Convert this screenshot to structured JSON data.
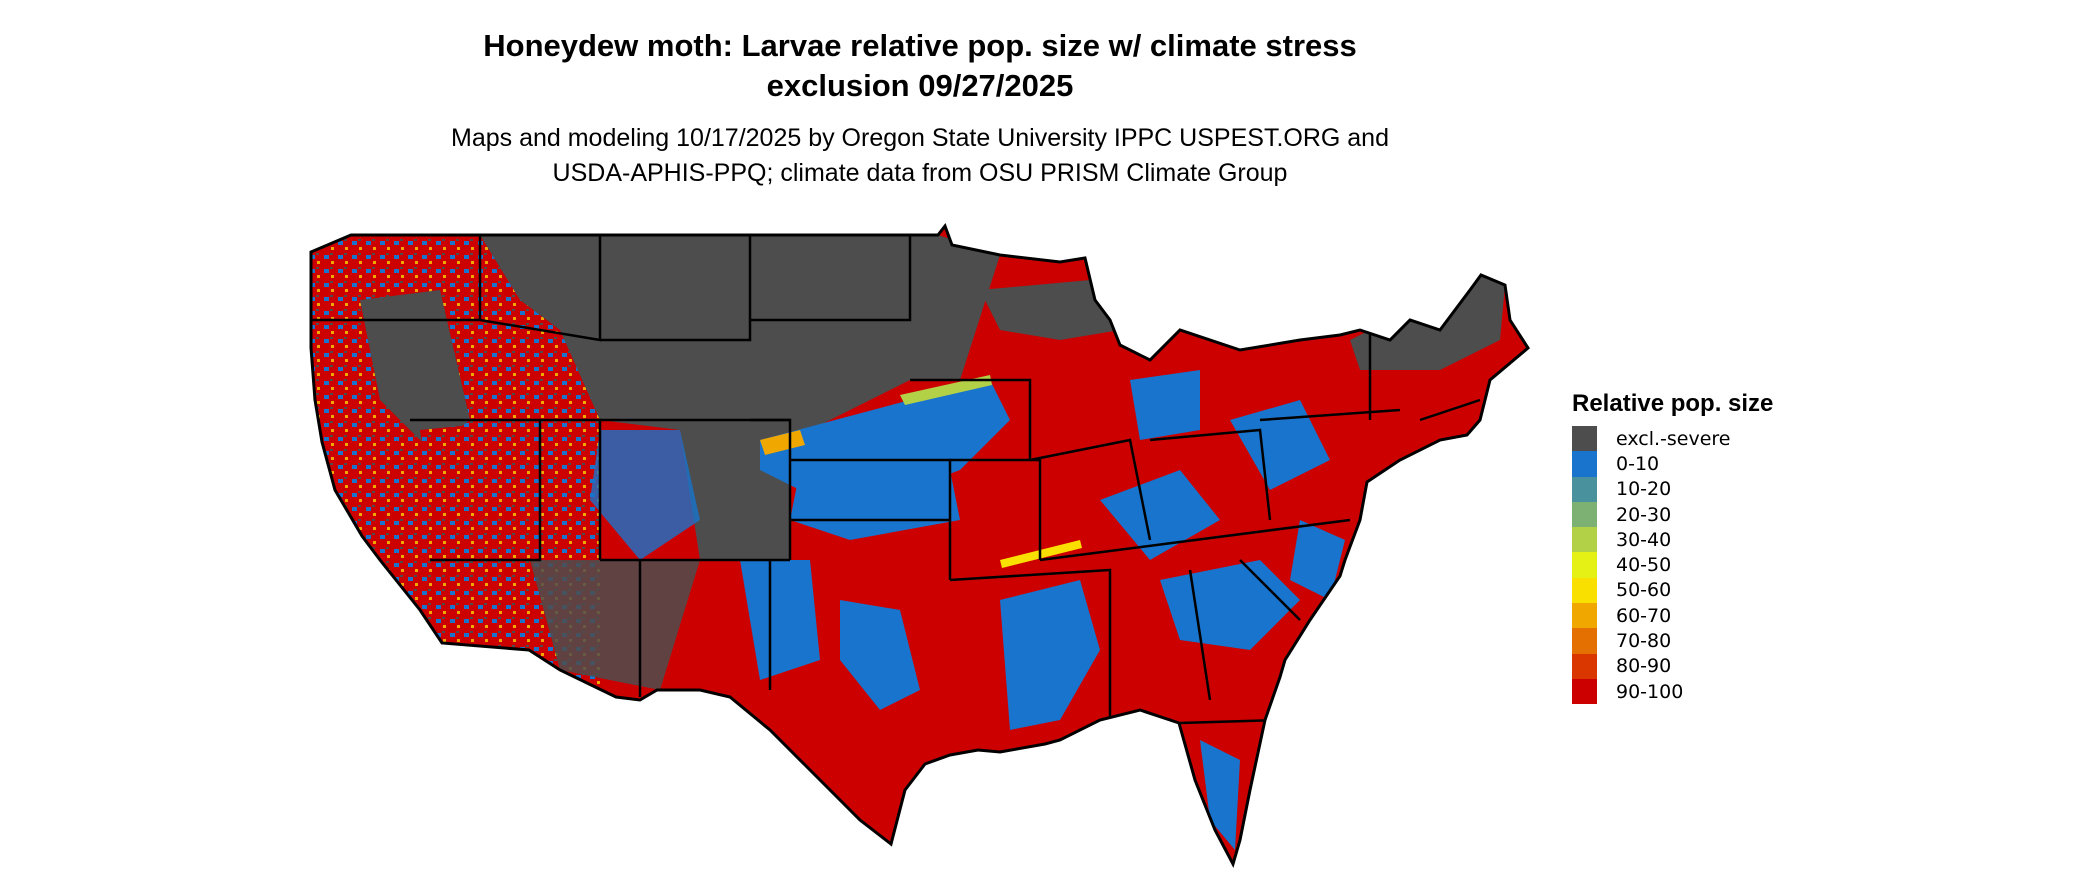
{
  "title_line1": "Honeydew moth: Larvae relative pop. size w/ climate stress",
  "title_line2": "exclusion 09/27/2025",
  "subtitle_line1": "Maps and modeling 10/17/2025 by Oregon State University IPPC USPEST.ORG and",
  "subtitle_line2": "USDA-APHIS-PPQ; climate data from OSU PRISM Climate Group",
  "map_region": "Contiguous United States",
  "legend": {
    "title": "Relative pop. size",
    "items": [
      {
        "label": "excl.-severe",
        "color": "#4d4d4d"
      },
      {
        "label": "0-10",
        "color": "#1874cd"
      },
      {
        "label": "10-20",
        "color": "#4a919e"
      },
      {
        "label": "20-30",
        "color": "#7db073"
      },
      {
        "label": "30-40",
        "color": "#b3d147"
      },
      {
        "label": "40-50",
        "color": "#e5f015"
      },
      {
        "label": "50-60",
        "color": "#fae000"
      },
      {
        "label": "60-70",
        "color": "#f0a800"
      },
      {
        "label": "70-80",
        "color": "#e37000"
      },
      {
        "label": "80-90",
        "color": "#d93600"
      },
      {
        "label": "90-100",
        "color": "#cd0000"
      }
    ]
  }
}
